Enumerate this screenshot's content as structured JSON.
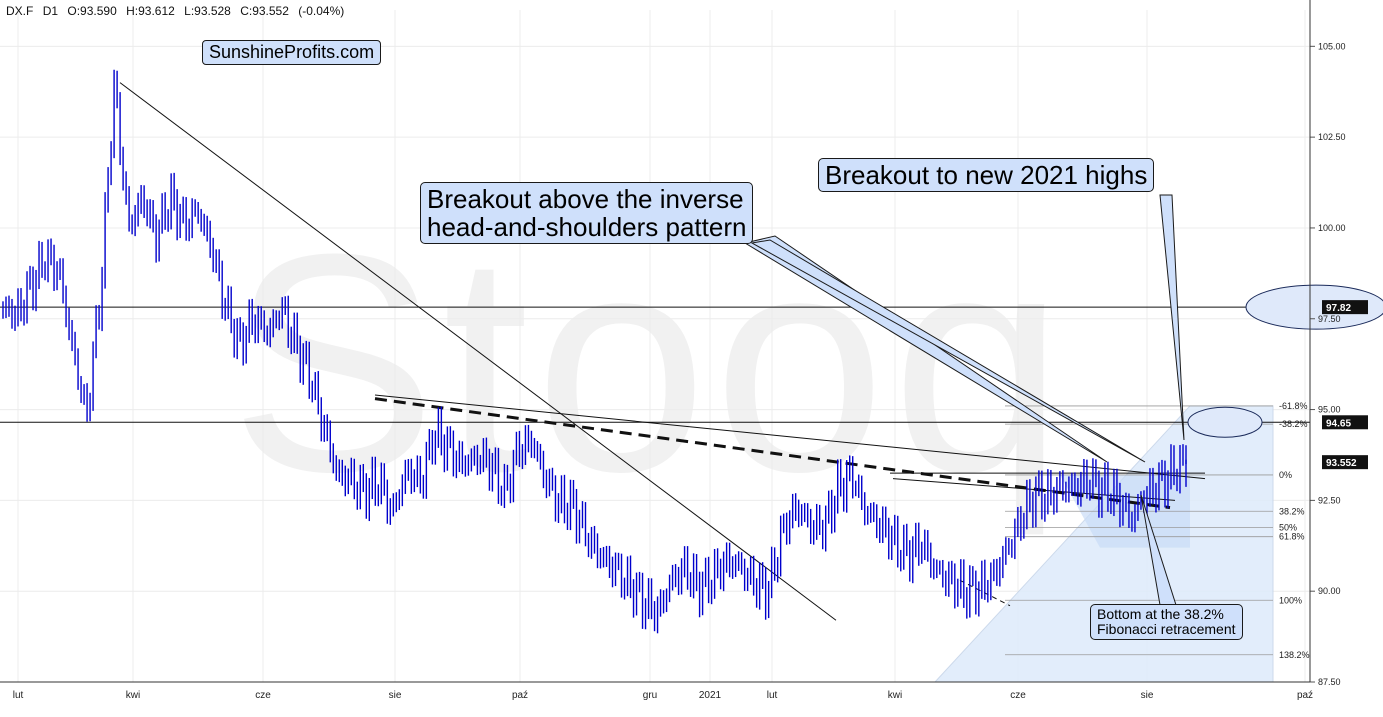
{
  "header": {
    "symbol": "DX.F",
    "interval": "D1",
    "open": "O:93.590",
    "high": "H:93.612",
    "low": "L:93.528",
    "close": "C:93.552",
    "change": "(-0.04%)"
  },
  "brand": "SunshineProfits.com",
  "watermark": "Stooq",
  "annotations": {
    "ihs_line1": "Breakout above the inverse",
    "ihs_line2": "head-and-shoulders pattern",
    "highs": "Breakout to new 2021 highs",
    "fib_line1": "Bottom at the 38.2%",
    "fib_line2": "Fibonacci retracement"
  },
  "colors": {
    "price": "#0000cc",
    "callout_fill": "#cfe0fb",
    "fib_fill": "#deebfb",
    "grid": "#ececec"
  },
  "chart_data": {
    "type": "line",
    "instrument": "DX.F",
    "interval": "D1",
    "x_tick_labels": [
      "lut",
      "kwi",
      "cze",
      "sie",
      "paź",
      "gru",
      "2021",
      "lut",
      "kwi",
      "cze",
      "sie",
      "paź"
    ],
    "y_ticks": [
      87.5,
      90.0,
      92.5,
      95.0,
      97.5,
      100.0,
      102.5,
      105.0
    ],
    "y_tick_labels": [
      "87.50",
      "90.00",
      "92.50",
      "95.00",
      "97.50",
      "100.00",
      "102.50",
      "105.00"
    ],
    "ylim": [
      87.5,
      106.0
    ],
    "grid": true,
    "price_markers": [
      {
        "label": "97.82",
        "value": 97.82
      },
      {
        "label": "94.65",
        "value": 94.65
      },
      {
        "label": "93.552",
        "value": 93.552
      }
    ],
    "horizontal_levels": [
      97.82,
      94.65
    ],
    "fibonacci_labels": [
      {
        "label": "-61.8%",
        "value": 95.1
      },
      {
        "label": "-38.2%",
        "value": 94.6
      },
      {
        "label": "0%",
        "value": 93.2
      },
      {
        "label": "38.2%",
        "value": 92.2
      },
      {
        "label": "50%",
        "value": 91.75
      },
      {
        "label": "61.8%",
        "value": 91.5
      },
      {
        "label": "100%",
        "value": 89.75
      },
      {
        "label": "138.2%",
        "value": 88.25
      }
    ],
    "series": [
      {
        "points": [
          [
            "lut",
            97.8
          ],
          [
            "",
            97.6
          ],
          [
            "",
            98.4
          ],
          [
            "",
            99.2
          ],
          [
            "",
            98.8
          ],
          [
            "",
            96.7
          ],
          [
            "",
            94.8
          ],
          [
            "",
            98.2
          ],
          [
            "kwi",
            104.0
          ],
          [
            "",
            100.0
          ],
          [
            "",
            100.8
          ],
          [
            "",
            99.8
          ],
          [
            "",
            100.8
          ],
          [
            "",
            100.1
          ],
          [
            "",
            100.5
          ],
          [
            "",
            99.4
          ],
          [
            "cze",
            97.8
          ],
          [
            "",
            96.8
          ],
          [
            "",
            97.5
          ],
          [
            "",
            97.1
          ],
          [
            "",
            97.8
          ],
          [
            "",
            96.8
          ],
          [
            "",
            96.0
          ],
          [
            "",
            94.6
          ],
          [
            "sie",
            93.2
          ],
          [
            "",
            93.1
          ],
          [
            "",
            92.7
          ],
          [
            "",
            93.0
          ],
          [
            "",
            92.2
          ],
          [
            "",
            93.3
          ],
          [
            "",
            93.0
          ],
          [
            "",
            94.4
          ],
          [
            "paź",
            93.9
          ],
          [
            "",
            93.5
          ],
          [
            "",
            93.7
          ],
          [
            "",
            93.5
          ],
          [
            "",
            92.7
          ],
          [
            "",
            93.9
          ],
          [
            "",
            94.1
          ],
          [
            "",
            93.1
          ],
          [
            "",
            92.4
          ],
          [
            "",
            92.3
          ],
          [
            "",
            91.5
          ],
          [
            "gru",
            90.9
          ],
          [
            "",
            90.6
          ],
          [
            "",
            90.2
          ],
          [
            "",
            89.7
          ],
          [
            "2021",
            89.4
          ],
          [
            "",
            90.3
          ],
          [
            "",
            90.6
          ],
          [
            "",
            90.1
          ],
          [
            "",
            90.4
          ],
          [
            "lut",
            90.8
          ],
          [
            "",
            90.7
          ],
          [
            "",
            90.2
          ],
          [
            "",
            90.0
          ],
          [
            "",
            91.7
          ],
          [
            "",
            92.3
          ],
          [
            "",
            91.8
          ],
          [
            "",
            91.8
          ],
          [
            "",
            92.8
          ],
          [
            "kwi",
            93.2
          ],
          [
            "",
            92.2
          ],
          [
            "",
            91.8
          ],
          [
            "",
            91.4
          ],
          [
            "",
            91.0
          ],
          [
            "",
            91.3
          ],
          [
            "",
            90.6
          ],
          [
            "",
            90.3
          ],
          [
            "cze",
            90.0
          ],
          [
            "",
            90.1
          ],
          [
            "",
            90.3
          ],
          [
            "",
            91.0
          ],
          [
            "",
            91.9
          ],
          [
            "",
            92.6
          ],
          [
            "",
            92.6
          ],
          [
            "",
            92.9
          ],
          [
            "",
            92.8
          ],
          [
            "",
            93.1
          ],
          [
            "",
            92.8
          ],
          [
            "",
            92.6
          ],
          [
            "sie",
            92.0
          ],
          [
            "",
            92.6
          ],
          [
            "",
            92.9
          ],
          [
            "",
            93.3
          ],
          [
            "",
            93.55
          ]
        ]
      }
    ]
  }
}
